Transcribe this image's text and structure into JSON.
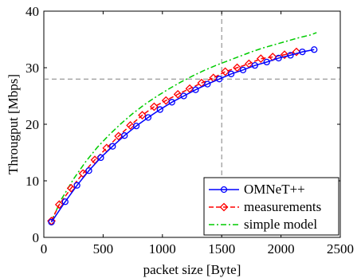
{
  "chart_data": {
    "type": "line",
    "title": "",
    "xlabel": "packet size [Byte]",
    "ylabel": "Througput [Mbps]",
    "xlim": [
      0,
      2500
    ],
    "ylim": [
      0,
      40
    ],
    "x_ticks": [
      0,
      500,
      1000,
      1500,
      2000,
      2500
    ],
    "y_ticks": [
      0,
      10,
      20,
      30,
      40
    ],
    "grid": false,
    "legend_position": "bottom-right",
    "reference_lines": {
      "x": 1500,
      "y": 28
    },
    "series": [
      {
        "name": "OMNeT++",
        "color": "#0000ff",
        "marker": "circle",
        "line_style": "solid",
        "x": [
          64,
          180,
          280,
          380,
          480,
          580,
          680,
          780,
          880,
          980,
          1080,
          1180,
          1280,
          1380,
          1480,
          1580,
          1680,
          1780,
          1880,
          1980,
          2080,
          2180,
          2280
        ],
        "y": [
          2.7,
          6.3,
          9.2,
          11.8,
          14.1,
          16.1,
          18.0,
          19.7,
          21.2,
          22.6,
          23.9,
          25.0,
          26.1,
          27.1,
          28.0,
          28.9,
          29.6,
          30.4,
          31.0,
          31.7,
          32.2,
          32.8,
          33.2
        ]
      },
      {
        "name": "measurements",
        "color": "#ff0000",
        "marker": "diamond",
        "line_style": "dashed",
        "x": [
          64,
          130,
          230,
          330,
          430,
          530,
          630,
          730,
          830,
          930,
          1030,
          1130,
          1230,
          1330,
          1430,
          1530,
          1630,
          1730,
          1830,
          1930,
          2030,
          2130
        ],
        "y": [
          2.9,
          5.8,
          8.7,
          11.3,
          13.7,
          15.8,
          17.9,
          19.8,
          21.6,
          23.1,
          24.2,
          25.3,
          26.3,
          27.3,
          28.2,
          29.3,
          30.0,
          30.7,
          31.6,
          31.9,
          32.3,
          32.8
        ]
      },
      {
        "name": "simple model",
        "color": "#00cc00",
        "marker": "none",
        "line_style": "dashdot",
        "x": [
          64,
          150,
          250,
          350,
          450,
          550,
          650,
          750,
          850,
          950,
          1050,
          1150,
          1250,
          1350,
          1450,
          1550,
          1650,
          1750,
          1850,
          1950,
          2050,
          2150,
          2250,
          2300
        ],
        "y": [
          2.9,
          6.8,
          10.3,
          13.3,
          15.9,
          18.1,
          20.1,
          21.9,
          23.5,
          24.9,
          26.2,
          27.4,
          28.5,
          29.5,
          30.4,
          31.2,
          32.0,
          32.8,
          33.5,
          34.1,
          34.7,
          35.3,
          35.8,
          36.2
        ]
      }
    ]
  }
}
